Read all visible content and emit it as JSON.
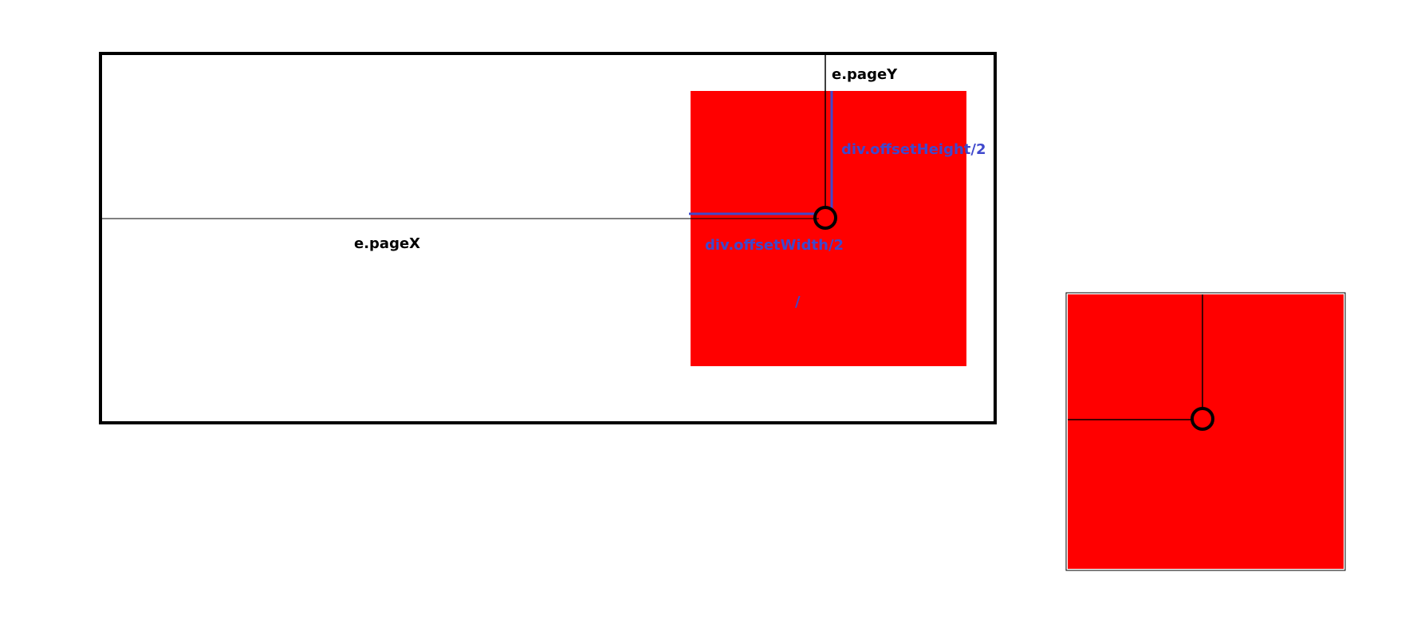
{
  "labels": {
    "page_x": "e.pageX",
    "page_y": "e.pageY",
    "offset_width_half": "div.offsetWidth/2",
    "offset_height_half": "div.offsetHeight/2",
    "small_mark": "/"
  },
  "colors": {
    "box_fill": "#ff0000",
    "measure_blue": "#3f48cc",
    "frame": "#000000",
    "background": "#ffffff"
  }
}
